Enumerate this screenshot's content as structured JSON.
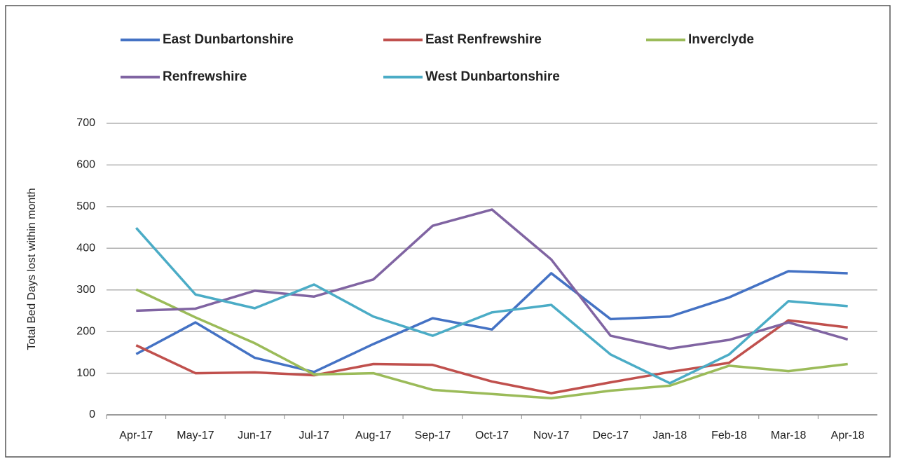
{
  "chart_data": {
    "type": "line",
    "y_label": "Total Bed Days lost within month",
    "categories": [
      "Apr-17",
      "May-17",
      "Jun-17",
      "Jul-17",
      "Aug-17",
      "Sep-17",
      "Oct-17",
      "Nov-17",
      "Dec-17",
      "Jan-18",
      "Feb-18",
      "Mar-18",
      "Apr-18"
    ],
    "series": [
      {
        "name": "East Dunbartonshire",
        "color": "#4472c4",
        "values": [
          146,
          222,
          137,
          103,
          170,
          232,
          205,
          340,
          230,
          236,
          282,
          345,
          340
        ]
      },
      {
        "name": "East Renfrewshire",
        "color": "#c0504d",
        "values": [
          167,
          100,
          102,
          95,
          122,
          120,
          80,
          52,
          78,
          103,
          125,
          227,
          210
        ]
      },
      {
        "name": "Inverclyde",
        "color": "#9bbb59",
        "values": [
          301,
          234,
          172,
          97,
          100,
          60,
          50,
          40,
          58,
          70,
          118,
          105,
          122
        ]
      },
      {
        "name": "Renfrewshire",
        "color": "#8064a2",
        "values": [
          250,
          255,
          298,
          284,
          325,
          454,
          493,
          373,
          190,
          159,
          180,
          222,
          181
        ]
      },
      {
        "name": "West Dunbartonshire",
        "color": "#4bacc6",
        "values": [
          449,
          289,
          256,
          313,
          236,
          190,
          246,
          264,
          145,
          76,
          145,
          273,
          261
        ]
      }
    ],
    "ylim": [
      0,
      700
    ],
    "yticks": [
      0,
      100,
      200,
      300,
      400,
      500,
      600,
      700
    ],
    "grid": true,
    "legend": "top"
  }
}
